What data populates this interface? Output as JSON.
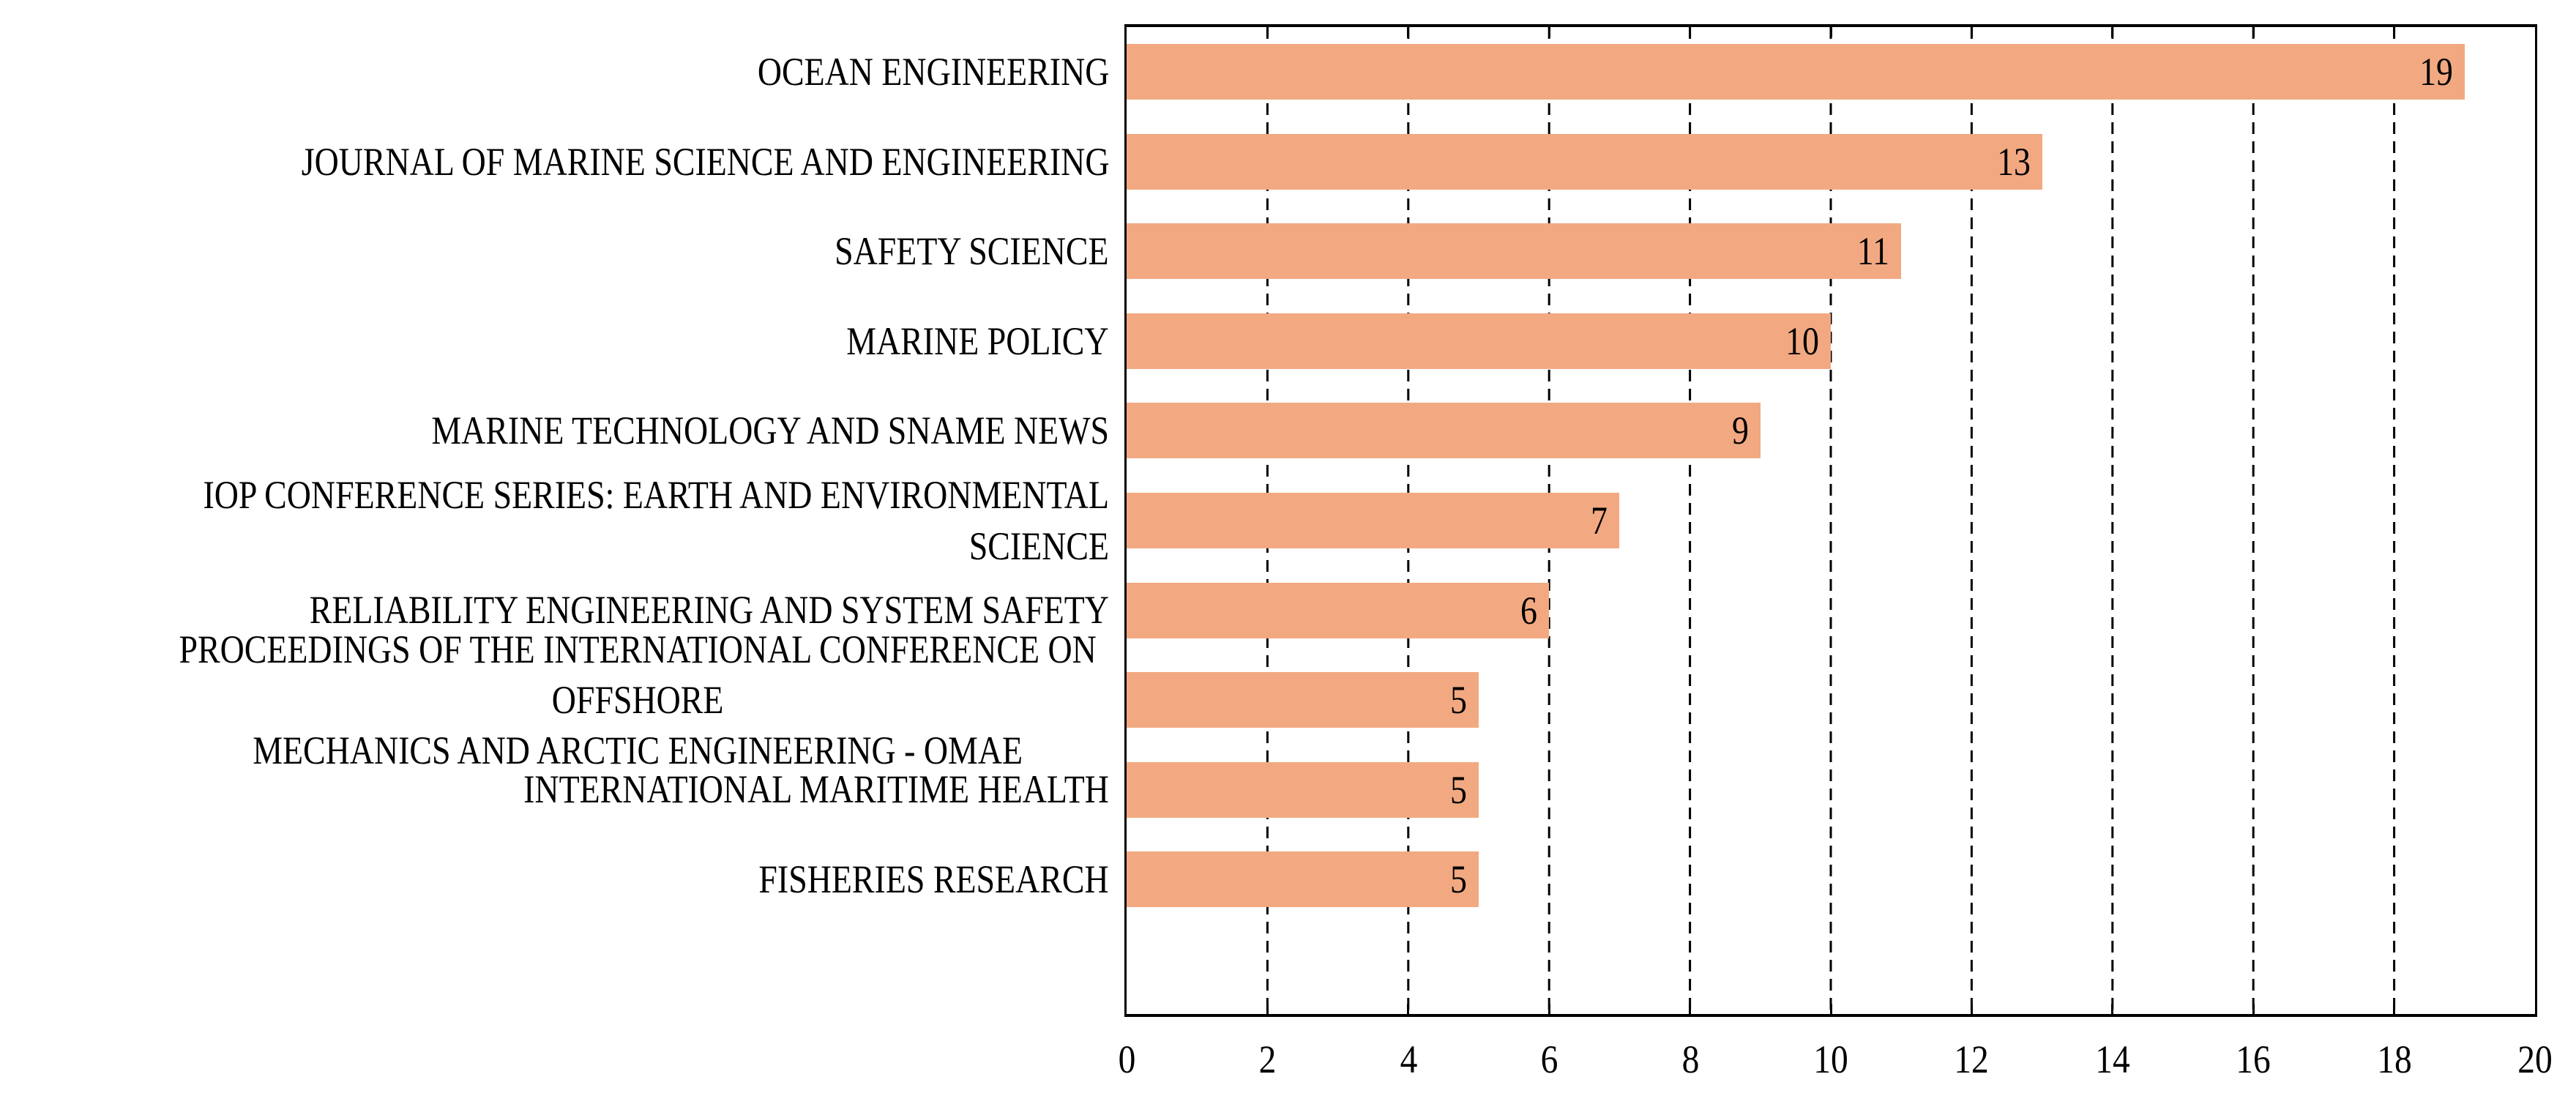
{
  "chart_data": {
    "type": "bar",
    "orientation": "horizontal",
    "title": "",
    "xlabel": "",
    "ylabel": "",
    "xlim": [
      0,
      20
    ],
    "xticks": [
      0,
      2,
      4,
      6,
      8,
      10,
      12,
      14,
      16,
      18,
      20
    ],
    "grid": "vertical-dashed",
    "legend_position": "none",
    "categories": [
      "OCEAN ENGINEERING",
      "JOURNAL OF MARINE SCIENCE AND ENGINEERING",
      "SAFETY SCIENCE",
      "MARINE POLICY",
      "MARINE TECHNOLOGY AND SNAME NEWS",
      "IOP CONFERENCE SERIES: EARTH AND ENVIRONMENTAL SCIENCE",
      "RELIABILITY ENGINEERING AND SYSTEM SAFETY",
      "PROCEEDINGS OF THE INTERNATIONAL CONFERENCE ON OFFSHORE MECHANICS AND ARCTIC ENGINEERING - OMAE",
      "INTERNATIONAL MARITIME HEALTH",
      "FISHERIES RESEARCH"
    ],
    "category_display": [
      "OCEAN ENGINEERING",
      "JOURNAL OF MARINE SCIENCE AND ENGINEERING",
      "SAFETY SCIENCE",
      "MARINE POLICY",
      "MARINE TECHNOLOGY AND SNAME NEWS",
      "IOP CONFERENCE SERIES: EARTH AND ENVIRONMENTAL SCIENCE",
      "RELIABILITY ENGINEERING AND SYSTEM SAFETY",
      "PROCEEDINGS OF THE INTERNATIONAL CONFERENCE ON OFFSHORE\nMECHANICS AND ARCTIC ENGINEERING - OMAE",
      "INTERNATIONAL MARITIME HEALTH",
      "FISHERIES RESEARCH"
    ],
    "multiline_category_index": 7,
    "values": [
      19,
      13,
      11,
      10,
      9,
      7,
      6,
      5,
      5,
      5
    ],
    "data_label_position": "inside-end",
    "empty_bottom_slots": 1,
    "colors": {
      "bar_fill": "#F2A981",
      "frame": "#000000",
      "gridline": "#000000",
      "text": "#000000",
      "background": "#FFFFFF"
    }
  }
}
